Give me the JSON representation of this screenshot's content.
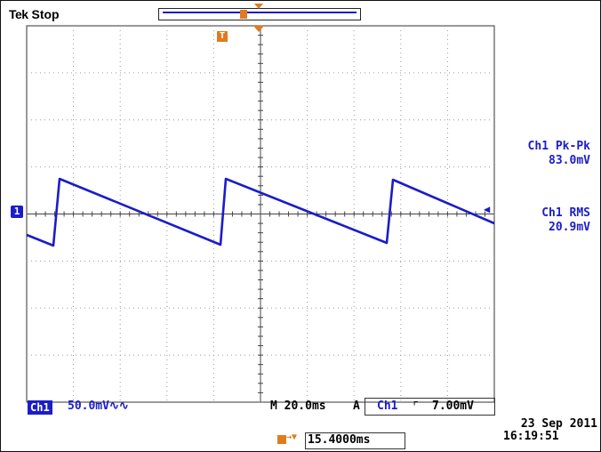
{
  "status": {
    "brand": "Tek",
    "state": "Stop"
  },
  "channel": {
    "badge": "Ch1",
    "scale": "50.0mV",
    "coupling_icon": "ac-bandwidth-icon",
    "color": "#1c1cc8"
  },
  "measurements": [
    {
      "label": "Ch1 Pk-Pk",
      "value": "83.0mV"
    },
    {
      "label": "Ch1 RMS",
      "value": "20.9mV"
    }
  ],
  "timebase": {
    "text": "M 20.0ms"
  },
  "trigger": {
    "mode": "A",
    "source": "Ch1",
    "slope_icon": "rising-edge-icon",
    "level": "7.00mV"
  },
  "delay": {
    "value": "15.4000ms",
    "marker_color": "#e07b20"
  },
  "clock": {
    "date": "23 Sep  2011",
    "time": "16:19:51"
  },
  "graticule": {
    "divisions_x": 10,
    "divisions_y": 8
  }
}
